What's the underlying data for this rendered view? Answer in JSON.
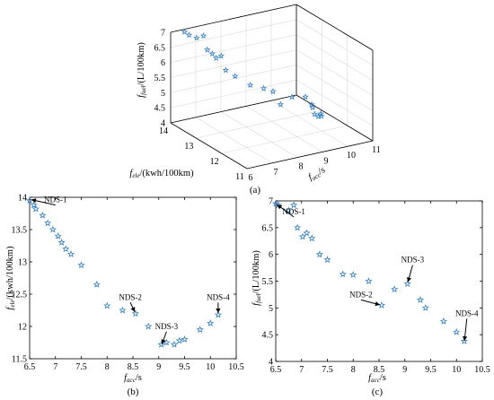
{
  "captions": {
    "a": "(a)",
    "b": "(b)",
    "c": "(c)"
  },
  "colors": {
    "marker": "#2f7fc8",
    "axis": "#000000",
    "grid": "#d9d9d9"
  },
  "marker_icon": "star-icon",
  "chart_data": [
    {
      "id": "a",
      "type": "scatter",
      "projection": "3d",
      "grid": true,
      "axes": {
        "x": {
          "label_main": "f",
          "label_sub": "acc",
          "label_unit": "/s",
          "ticks": [
            6,
            7,
            8,
            9,
            10,
            11
          ],
          "range": [
            6,
            11
          ]
        },
        "y": {
          "label_main": "f",
          "label_sub": "ele",
          "label_unit": "/(kwh/100km)",
          "ticks": [
            11,
            12,
            13,
            14
          ],
          "range": [
            11,
            14
          ]
        },
        "z": {
          "label_main": "f",
          "label_sub": "fuel",
          "label_unit": "/(L/100km)",
          "ticks": [
            4,
            4.5,
            5,
            5.5,
            6,
            6.5,
            7
          ],
          "range": [
            4,
            7
          ]
        }
      },
      "points": [
        {
          "x": 6.5,
          "y": 13.95,
          "z": 6.95
        },
        {
          "x": 6.55,
          "y": 13.82,
          "z": 6.9
        },
        {
          "x": 6.75,
          "y": 13.72,
          "z": 6.82
        },
        {
          "x": 6.9,
          "y": 13.6,
          "z": 6.92
        },
        {
          "x": 6.95,
          "y": 13.5,
          "z": 6.5
        },
        {
          "x": 7.05,
          "y": 13.4,
          "z": 6.4
        },
        {
          "x": 7.1,
          "y": 13.3,
          "z": 6.3
        },
        {
          "x": 7.2,
          "y": 13.2,
          "z": 6.4
        },
        {
          "x": 7.3,
          "y": 13.12,
          "z": 5.95
        },
        {
          "x": 7.5,
          "y": 12.95,
          "z": 5.8
        },
        {
          "x": 7.8,
          "y": 12.65,
          "z": 5.6
        },
        {
          "x": 8.0,
          "y": 12.32,
          "z": 5.62
        },
        {
          "x": 8.3,
          "y": 12.25,
          "z": 5.5
        },
        {
          "x": 8.55,
          "y": 12.2,
          "z": 5.05
        },
        {
          "x": 8.8,
          "y": 12.0,
          "z": 5.35
        },
        {
          "x": 9.05,
          "y": 11.72,
          "z": 5.45
        },
        {
          "x": 9.3,
          "y": 11.72,
          "z": 5.15
        },
        {
          "x": 9.4,
          "y": 11.78,
          "z": 5.0
        },
        {
          "x": 9.5,
          "y": 11.8,
          "z": 4.75
        },
        {
          "x": 9.8,
          "y": 11.95,
          "z": 4.55
        },
        {
          "x": 10.0,
          "y": 12.05,
          "z": 4.55
        },
        {
          "x": 10.15,
          "y": 12.18,
          "z": 4.38
        }
      ]
    },
    {
      "id": "b",
      "type": "scatter",
      "xlabel_main": "f",
      "xlabel_sub": "acc",
      "xlabel_unit": "/s",
      "ylabel_main": "f",
      "ylabel_sub": "ele",
      "ylabel_unit": "/(kwh/100km)",
      "xlim": [
        6.5,
        10.5
      ],
      "ylim": [
        11.5,
        14
      ],
      "xticks": [
        "6.5",
        "7",
        "7.5",
        "8",
        "8.5",
        "9",
        "9.5",
        "10",
        "10.5"
      ],
      "yticks": [
        "11.5",
        "12",
        "12.5",
        "13",
        "13.5",
        "14"
      ],
      "grid": false,
      "x": [
        6.5,
        6.58,
        6.62,
        6.75,
        6.85,
        6.95,
        7.05,
        7.12,
        7.2,
        7.3,
        7.5,
        7.8,
        8.0,
        8.3,
        8.55,
        8.8,
        9.05,
        9.15,
        9.3,
        9.4,
        9.5,
        9.8,
        10.0,
        10.15
      ],
      "y": [
        13.95,
        13.88,
        13.82,
        13.72,
        13.6,
        13.5,
        13.4,
        13.3,
        13.2,
        13.12,
        12.95,
        12.65,
        12.32,
        12.25,
        12.2,
        12.0,
        11.72,
        11.75,
        11.72,
        11.78,
        11.8,
        11.95,
        12.05,
        12.18
      ],
      "annotations": [
        {
          "text": "NDS-1",
          "x": 6.5,
          "y": 13.97,
          "tx": 7.0,
          "ty": 13.88
        },
        {
          "text": "NDS-2",
          "x": 8.55,
          "y": 12.2,
          "tx": 8.45,
          "ty": 12.37
        },
        {
          "text": "NDS-3",
          "x": 9.05,
          "y": 11.7,
          "tx": 9.15,
          "ty": 11.92
        },
        {
          "text": "NDS-4",
          "x": 10.15,
          "y": 12.18,
          "tx": 10.15,
          "ty": 12.37
        }
      ]
    },
    {
      "id": "c",
      "type": "scatter",
      "xlabel_main": "f",
      "xlabel_sub": "acc",
      "xlabel_unit": "/s",
      "ylabel_main": "f",
      "ylabel_sub": "fuel",
      "ylabel_unit": "/(L/100km)",
      "xlim": [
        6.5,
        10.5
      ],
      "ylim": [
        4,
        7
      ],
      "xticks": [
        "6.5",
        "7",
        "7.5",
        "8",
        "8.5",
        "9",
        "9.5",
        "10",
        "10.5"
      ],
      "yticks": [
        "4",
        "4.5",
        "5",
        "5.5",
        "6",
        "6.5",
        "7"
      ],
      "grid": false,
      "x": [
        6.5,
        6.55,
        6.75,
        6.85,
        6.92,
        7.02,
        7.1,
        7.2,
        7.35,
        7.5,
        7.8,
        8.0,
        8.3,
        8.55,
        8.8,
        9.05,
        9.3,
        9.4,
        9.75,
        10.0,
        10.15
      ],
      "y": [
        6.95,
        6.92,
        6.82,
        6.92,
        6.5,
        6.33,
        6.4,
        6.3,
        6.0,
        5.9,
        5.63,
        5.62,
        5.5,
        5.05,
        5.35,
        5.45,
        5.15,
        5.0,
        4.75,
        4.55,
        4.38
      ],
      "annotations": [
        {
          "text": "NDS-1",
          "x": 6.5,
          "y": 6.95,
          "tx": 6.85,
          "ty": 6.7
        },
        {
          "text": "NDS-2",
          "x": 8.55,
          "y": 5.05,
          "tx": 8.15,
          "ty": 5.15
        },
        {
          "text": "NDS-3",
          "x": 9.05,
          "y": 5.45,
          "tx": 9.15,
          "ty": 5.8
        },
        {
          "text": "NDS-4",
          "x": 10.15,
          "y": 4.35,
          "tx": 10.2,
          "ty": 4.8
        }
      ]
    }
  ]
}
